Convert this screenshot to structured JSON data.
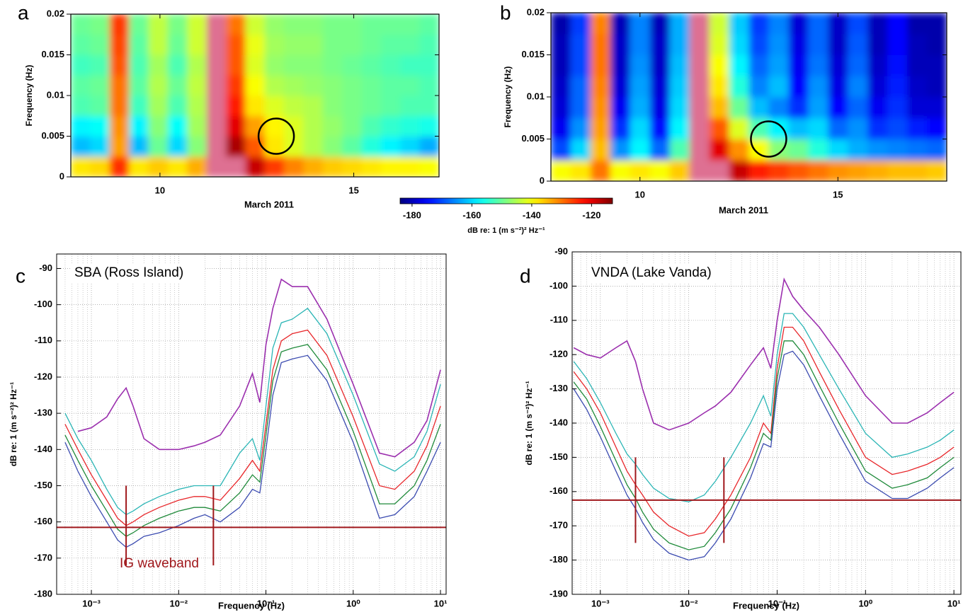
{
  "chart_data": [
    {
      "type": "heatmap",
      "label": "a",
      "xlabel": "March  2011",
      "ylabel": "Frequency  (Hz)",
      "xbins": [
        7.7,
        8.2,
        8.7,
        9.2,
        9.7,
        10.2,
        10.7,
        11.2,
        11.7,
        12.2,
        12.7,
        13.2,
        13.7,
        14.2,
        14.7,
        15.2,
        15.7,
        16.2,
        16.7,
        17.2
      ],
      "ybins": [
        0,
        0.0025,
        0.005,
        0.0075,
        0.01,
        0.0125,
        0.015,
        0.0175,
        0.02
      ],
      "z": [
        [
          -138,
          -137,
          -125,
          -138,
          -136,
          -138,
          -134,
          -105,
          -110,
          -118,
          -126,
          -131,
          -134,
          -136,
          -137,
          -138,
          -139,
          -139,
          -140
        ],
        [
          -162,
          -160,
          -133,
          -162,
          -150,
          -160,
          -148,
          -105,
          -116,
          -128,
          -138,
          -142,
          -145,
          -148,
          -151,
          -155,
          -158,
          -160,
          -163
        ],
        [
          -158,
          -157,
          -132,
          -158,
          -148,
          -157,
          -146,
          -106,
          -120,
          -133,
          -139,
          -142,
          -145,
          -147,
          -149,
          -152,
          -154,
          -155,
          -156
        ],
        [
          -152,
          -151,
          -130,
          -153,
          -146,
          -152,
          -145,
          -107,
          -124,
          -138,
          -142,
          -144,
          -145,
          -148,
          -149,
          -150,
          -151,
          -152,
          -152
        ],
        [
          -151,
          -150,
          -130,
          -151,
          -145,
          -150,
          -144,
          -108,
          -126,
          -140,
          -145,
          -146,
          -147,
          -148,
          -149,
          -150,
          -151,
          -151,
          -152
        ],
        [
          -153,
          -152,
          -128,
          -152,
          -146,
          -152,
          -145,
          -109,
          -128,
          -142,
          -147,
          -148,
          -148,
          -149,
          -150,
          -151,
          -152,
          -153,
          -153
        ],
        [
          -151,
          -150,
          -127,
          -151,
          -144,
          -150,
          -143,
          -110,
          -128,
          -141,
          -146,
          -147,
          -147,
          -149,
          -149,
          -150,
          -151,
          -151,
          -152
        ],
        [
          -150,
          -149,
          -126,
          -150,
          -144,
          -149,
          -143,
          -112,
          -130,
          -143,
          -147,
          -148,
          -148,
          -149,
          -149,
          -150,
          -150,
          -150,
          -151
        ]
      ],
      "clim": [
        -184,
        -113
      ],
      "colormap": "jet",
      "xlim": [
        7.7,
        17.2
      ],
      "xticks": [
        10,
        15
      ],
      "ylim": [
        0,
        0.02
      ],
      "yticks": [
        0,
        0.005,
        0.01,
        0.015,
        0.02
      ],
      "circle": {
        "x": 13.0,
        "y": 0.005
      },
      "colorbar": {
        "ticks": [
          -180,
          -160,
          -140,
          -120
        ],
        "label": "dB re: 1 (m s⁻²)² Hz⁻¹"
      }
    },
    {
      "type": "heatmap",
      "label": "b",
      "xlabel": "March  2011",
      "ylabel": "Frequency  (Hz)",
      "xbins": [
        7.75,
        8.25,
        8.75,
        9.25,
        9.75,
        10.25,
        10.75,
        11.25,
        11.75,
        12.25,
        12.75,
        13.25,
        13.75,
        14.25,
        14.75,
        15.25,
        15.75,
        16.25,
        16.75,
        17.25,
        17.75
      ],
      "ybins": [
        0,
        0.0025,
        0.005,
        0.0075,
        0.01,
        0.0125,
        0.015,
        0.0175,
        0.02
      ],
      "z": [
        [
          -140,
          -138,
          -130,
          -140,
          -138,
          -140,
          -136,
          -105,
          -112,
          -118,
          -124,
          -126,
          -128,
          -130,
          -132,
          -133,
          -134,
          -135,
          -135,
          -136
        ],
        [
          -170,
          -160,
          -135,
          -165,
          -158,
          -168,
          -152,
          -105,
          -120,
          -132,
          -140,
          -148,
          -150,
          -155,
          -160,
          -163,
          -165,
          -166,
          -167,
          -168
        ],
        [
          -176,
          -165,
          -133,
          -172,
          -160,
          -174,
          -158,
          -106,
          -128,
          -142,
          -152,
          -158,
          -162,
          -160,
          -168,
          -165,
          -172,
          -170,
          -173,
          -175
        ],
        [
          -178,
          -168,
          -132,
          -176,
          -163,
          -177,
          -160,
          -107,
          -135,
          -150,
          -162,
          -166,
          -172,
          -164,
          -175,
          -168,
          -176,
          -172,
          -178,
          -178
        ],
        [
          -179,
          -168,
          -131,
          -178,
          -164,
          -178,
          -161,
          -108,
          -138,
          -155,
          -166,
          -162,
          -175,
          -165,
          -177,
          -166,
          -178,
          -173,
          -179,
          -180
        ],
        [
          -180,
          -170,
          -130,
          -179,
          -165,
          -179,
          -162,
          -109,
          -140,
          -158,
          -168,
          -164,
          -176,
          -167,
          -178,
          -168,
          -179,
          -174,
          -180,
          -180
        ],
        [
          -180,
          -170,
          -130,
          -179,
          -166,
          -179,
          -163,
          -110,
          -142,
          -160,
          -170,
          -165,
          -177,
          -168,
          -179,
          -169,
          -180,
          -175,
          -180,
          -181
        ],
        [
          -181,
          -171,
          -131,
          -180,
          -166,
          -180,
          -163,
          -112,
          -143,
          -161,
          -171,
          -166,
          -178,
          -168,
          -179,
          -170,
          -180,
          -175,
          -181,
          -181
        ]
      ],
      "clim": [
        -184,
        -113
      ],
      "colormap": "jet",
      "xlim": [
        7.75,
        17.75
      ],
      "xticks": [
        10,
        15
      ],
      "ylim": [
        0,
        0.02
      ],
      "yticks": [
        0,
        0.005,
        0.01,
        0.015,
        0.02
      ],
      "circle": {
        "x": 13.25,
        "y": 0.005
      }
    },
    {
      "type": "line",
      "label": "c",
      "text": "SBA  (Ross Island)",
      "band_label": "IG waveband",
      "xlabel": "Frequency  (Hz)",
      "ylabel": "dB re: 1 (m s⁻²)² Hz⁻¹",
      "xscale": "log",
      "grid": true,
      "x": [
        0.0005,
        0.0007,
        0.001,
        0.0015,
        0.002,
        0.0025,
        0.003,
        0.004,
        0.006,
        0.01,
        0.015,
        0.02,
        0.03,
        0.05,
        0.07,
        0.085,
        0.1,
        0.12,
        0.15,
        0.2,
        0.3,
        0.5,
        1,
        2,
        3,
        5,
        7,
        10
      ],
      "series": [
        {
          "color": "#9b2fae",
          "values": [
            null,
            -135,
            -134,
            -131,
            -126,
            -123,
            -128,
            -137,
            -140,
            -140,
            -139,
            -138,
            -136,
            -128,
            -119,
            -127,
            -111,
            -101,
            -93,
            -95,
            -95,
            -104,
            -122,
            -141,
            -142,
            -138,
            -132,
            -118
          ]
        },
        {
          "color": "#2ab5b5",
          "values": [
            -130,
            -137,
            -143,
            -151,
            -156,
            -158,
            -157,
            -155,
            -153,
            -151,
            -150,
            -150,
            -150,
            -141,
            -137,
            -143,
            -128,
            -112,
            -105,
            -104,
            -101,
            -108,
            -125,
            -144,
            -146,
            -142,
            -135,
            -122
          ]
        },
        {
          "color": "#e8262a",
          "values": [
            -133,
            -140,
            -147,
            -154,
            -159,
            -161,
            -160,
            -158,
            -156,
            -154,
            -153,
            -153,
            -154,
            -148,
            -143,
            -146,
            -133,
            -118,
            -110,
            -108,
            -107,
            -114,
            -131,
            -150,
            -151,
            -146,
            -139,
            -128
          ]
        },
        {
          "color": "#1f8a3a",
          "values": [
            -136,
            -143,
            -150,
            -157,
            -162,
            -164,
            -163,
            -161,
            -159,
            -157,
            -156,
            -156,
            -157,
            -152,
            -147,
            -149,
            -136,
            -121,
            -113,
            -112,
            -111,
            -118,
            -135,
            -155,
            -155,
            -150,
            -143,
            -133
          ]
        },
        {
          "color": "#3b4bb0",
          "values": [
            -138,
            -146,
            -153,
            -160,
            -165,
            -167,
            -166,
            -164,
            -163,
            -161,
            -159,
            -158,
            -160,
            -156,
            -151,
            -152,
            -140,
            -125,
            -116,
            -115,
            -114,
            -121,
            -138,
            -159,
            -158,
            -153,
            -146,
            -138
          ]
        }
      ],
      "threshold": -161.5,
      "band": [
        0.0025,
        0.025
      ],
      "band_ylim": [
        -172,
        -150
      ],
      "line_color": "#a0181c",
      "xlim": [
        0.0004,
        11.6
      ],
      "xticks": [
        {
          "value": 0.001,
          "label": "10⁻³"
        },
        {
          "value": 0.01,
          "label": "10⁻²"
        },
        {
          "value": 0.1,
          "label": "10⁻¹"
        },
        {
          "value": 1,
          "label": "10⁰"
        },
        {
          "value": 10,
          "label": "10¹"
        }
      ],
      "ylim": [
        -180,
        -86
      ],
      "yticks": [
        -180,
        -170,
        -160,
        -150,
        -140,
        -130,
        -120,
        -110,
        -100,
        -90
      ]
    },
    {
      "type": "line",
      "label": "d",
      "text": "VNDA (Lake Vanda)",
      "xlabel": "Frequency  (Hz)",
      "ylabel": "dB re: 1 (m s⁻²)² Hz⁻¹",
      "xscale": "log",
      "grid": true,
      "x": [
        0.0005,
        0.0007,
        0.001,
        0.0015,
        0.002,
        0.0025,
        0.003,
        0.004,
        0.006,
        0.01,
        0.015,
        0.02,
        0.03,
        0.05,
        0.07,
        0.085,
        0.1,
        0.12,
        0.15,
        0.2,
        0.3,
        0.5,
        1,
        2,
        3,
        5,
        7,
        10
      ],
      "series": [
        {
          "color": "#9b2fae",
          "values": [
            -118,
            -120,
            -121,
            -118,
            -116,
            -122,
            -130,
            -140,
            -142,
            -140,
            -137,
            -135,
            -131,
            -123,
            -118,
            -124,
            -110,
            -98,
            -103,
            -107,
            -112,
            -120,
            -132,
            -140,
            -140,
            -137,
            -134,
            -131
          ]
        },
        {
          "color": "#2ab5b5",
          "values": [
            -122,
            -127,
            -134,
            -143,
            -149,
            -152,
            -155,
            -159,
            -162,
            -163,
            -161,
            -157,
            -150,
            -140,
            -132,
            -138,
            -120,
            -108,
            -108,
            -112,
            -120,
            -130,
            -143,
            -150,
            -149,
            -147,
            -145,
            -142
          ]
        },
        {
          "color": "#e8262a",
          "values": [
            -125,
            -130,
            -137,
            -147,
            -154,
            -158,
            -161,
            -166,
            -170,
            -173,
            -172,
            -168,
            -161,
            -150,
            -140,
            -143,
            -124,
            -112,
            -112,
            -116,
            -125,
            -136,
            -150,
            -155,
            -154,
            -152,
            -150,
            -147
          ]
        },
        {
          "color": "#1f8a3a",
          "values": [
            -128,
            -133,
            -141,
            -151,
            -158,
            -162,
            -166,
            -171,
            -175,
            -177,
            -176,
            -172,
            -165,
            -153,
            -143,
            -145,
            -127,
            -116,
            -116,
            -120,
            -129,
            -140,
            -154,
            -159,
            -158,
            -156,
            -153,
            -150
          ]
        },
        {
          "color": "#3b4bb0",
          "values": [
            -130,
            -136,
            -144,
            -154,
            -161,
            -165,
            -169,
            -174,
            -178,
            -180,
            -179,
            -175,
            -168,
            -156,
            -146,
            -147,
            -130,
            -120,
            -119,
            -123,
            -132,
            -143,
            -157,
            -162,
            -162,
            -159,
            -156,
            -153
          ]
        }
      ],
      "threshold": -162.5,
      "band": [
        0.0025,
        0.025
      ],
      "band_ylim": [
        -175,
        -150
      ],
      "line_color": "#a0181c",
      "xlim": [
        0.00048,
        12
      ],
      "xticks": [
        {
          "value": 0.001,
          "label": "10⁻³"
        },
        {
          "value": 0.01,
          "label": "10⁻²"
        },
        {
          "value": 0.1,
          "label": "10⁻¹"
        },
        {
          "value": 1,
          "label": "10⁰"
        },
        {
          "value": 10,
          "label": "10¹"
        }
      ],
      "ylim": [
        -190,
        -90
      ],
      "yticks": [
        -190,
        -180,
        -170,
        -160,
        -150,
        -140,
        -130,
        -120,
        -110,
        -100,
        -90
      ]
    }
  ]
}
